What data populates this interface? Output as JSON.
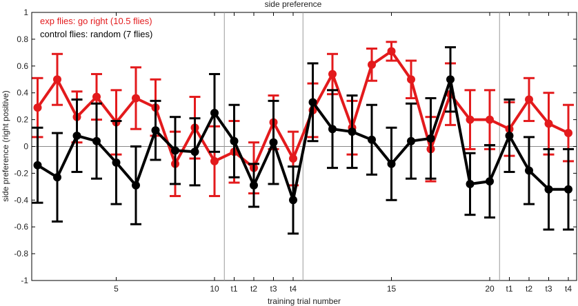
{
  "chart_data": {
    "type": "line",
    "title": "side preference",
    "xlabel": "training trial number",
    "ylabel": "side preference (right positive)",
    "ylim": [
      -1,
      1
    ],
    "yticks": [
      -1,
      -0.8,
      -0.6,
      -0.4,
      -0.2,
      0,
      0.2,
      0.4,
      0.6,
      0.8,
      1
    ],
    "ytick_labels": [
      "-1",
      "-0.8",
      "-0.6",
      "-0.4",
      "-0.2",
      "0",
      "0.2",
      "0.4",
      "0.6",
      "0.8",
      "1"
    ],
    "x_categories": [
      "1",
      "2",
      "3",
      "4",
      "5",
      "6",
      "7",
      "8",
      "9",
      "10",
      "t1",
      "t2",
      "t3",
      "t4",
      "11",
      "12",
      "13",
      "14",
      "15",
      "16",
      "17",
      "18",
      "19",
      "20",
      "t1",
      "t2",
      "t3",
      "t4"
    ],
    "xtick_labels": [
      {
        "index": 4,
        "label": "5"
      },
      {
        "index": 9,
        "label": "10"
      },
      {
        "index": 10,
        "label": "t1"
      },
      {
        "index": 11,
        "label": "t2"
      },
      {
        "index": 12,
        "label": "t3"
      },
      {
        "index": 13,
        "label": "t4"
      },
      {
        "index": 18,
        "label": "15"
      },
      {
        "index": 23,
        "label": "20"
      },
      {
        "index": 24,
        "label": "t1"
      },
      {
        "index": 25,
        "label": "t2"
      },
      {
        "index": 26,
        "label": "t3"
      },
      {
        "index": 27,
        "label": "t4"
      }
    ],
    "separators_after_index": [
      9,
      13,
      23
    ],
    "zero_line": true,
    "legend": {
      "placement": "top-left",
      "entries": [
        {
          "text": "exp flies: go right (10.5 flies)",
          "color": "#e31a1c"
        },
        {
          "text": "control flies: random (7 flies)",
          "color": "#000000"
        }
      ]
    },
    "series": [
      {
        "name": "exp flies: go right (10.5 flies)",
        "color": "#e31a1c",
        "values": [
          0.29,
          0.5,
          0.22,
          0.37,
          0.18,
          0.36,
          0.29,
          -0.13,
          0.14,
          -0.11,
          -0.04,
          -0.16,
          0.18,
          -0.09,
          0.27,
          0.54,
          0.14,
          0.61,
          0.71,
          0.5,
          -0.02,
          0.39,
          0.2,
          0.2,
          0.13,
          0.35,
          0.17,
          0.1
        ],
        "errors": [
          0.22,
          0.19,
          0.19,
          0.17,
          0.24,
          0.23,
          0.21,
          0.24,
          0.23,
          0.26,
          0.23,
          0.19,
          0.2,
          0.2,
          0.2,
          0.15,
          0.2,
          0.12,
          0.07,
          0.14,
          0.24,
          0.23,
          0.22,
          0.22,
          0.2,
          0.16,
          0.23,
          0.21
        ]
      },
      {
        "name": "control flies: random (7 flies)",
        "color": "#000000",
        "values": [
          -0.14,
          -0.23,
          0.08,
          0.04,
          -0.12,
          -0.29,
          0.12,
          -0.03,
          -0.04,
          0.25,
          0.04,
          -0.29,
          0.03,
          -0.4,
          0.33,
          0.13,
          0.11,
          0.05,
          -0.13,
          0.04,
          0.06,
          0.5,
          -0.28,
          -0.26,
          0.08,
          -0.18,
          -0.32,
          -0.32
        ],
        "errors": [
          0.28,
          0.33,
          0.27,
          0.28,
          0.31,
          0.29,
          0.22,
          0.25,
          0.25,
          0.29,
          0.27,
          0.16,
          0.31,
          0.25,
          0.29,
          0.29,
          0.27,
          0.26,
          0.27,
          0.28,
          0.3,
          0.24,
          0.23,
          0.27,
          0.27,
          0.25,
          0.3,
          0.3
        ]
      }
    ]
  }
}
